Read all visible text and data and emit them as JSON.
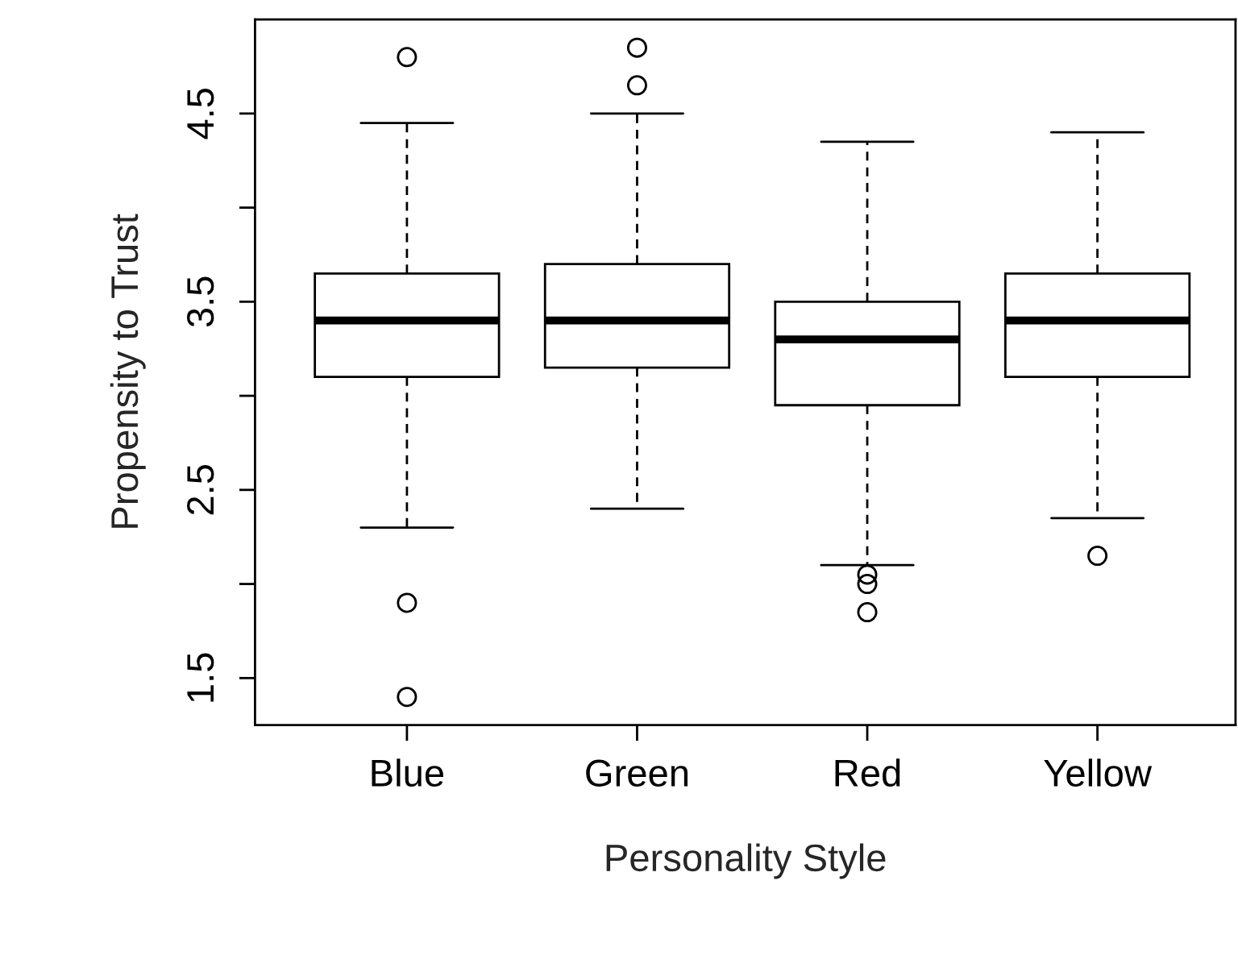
{
  "chart_data": {
    "type": "box",
    "categories": [
      "Blue",
      "Green",
      "Red",
      "Yellow"
    ],
    "boxes": [
      {
        "low": 2.3,
        "q1": 3.1,
        "median": 3.4,
        "q3": 3.65,
        "high": 4.45,
        "outliers": [
          4.8,
          1.9,
          1.4
        ]
      },
      {
        "low": 2.4,
        "q1": 3.15,
        "median": 3.4,
        "q3": 3.7,
        "high": 4.5,
        "outliers": [
          4.85,
          4.65
        ]
      },
      {
        "low": 2.1,
        "q1": 2.95,
        "median": 3.3,
        "q3": 3.5,
        "high": 4.35,
        "outliers": [
          2.05,
          2.0,
          1.85
        ]
      },
      {
        "low": 2.35,
        "q1": 3.1,
        "median": 3.4,
        "q3": 3.65,
        "high": 4.4,
        "outliers": [
          2.15
        ]
      }
    ],
    "xlabel": "Personality Style",
    "ylabel": "Propensity to Trust",
    "ylim": [
      1.25,
      5.0
    ],
    "yticks": [
      1.5,
      {
        "value": 2.0,
        "label": null
      },
      2.5,
      {
        "value": 3.0,
        "label": null
      },
      3.5,
      {
        "value": 4.0,
        "label": null
      },
      4.5
    ]
  }
}
